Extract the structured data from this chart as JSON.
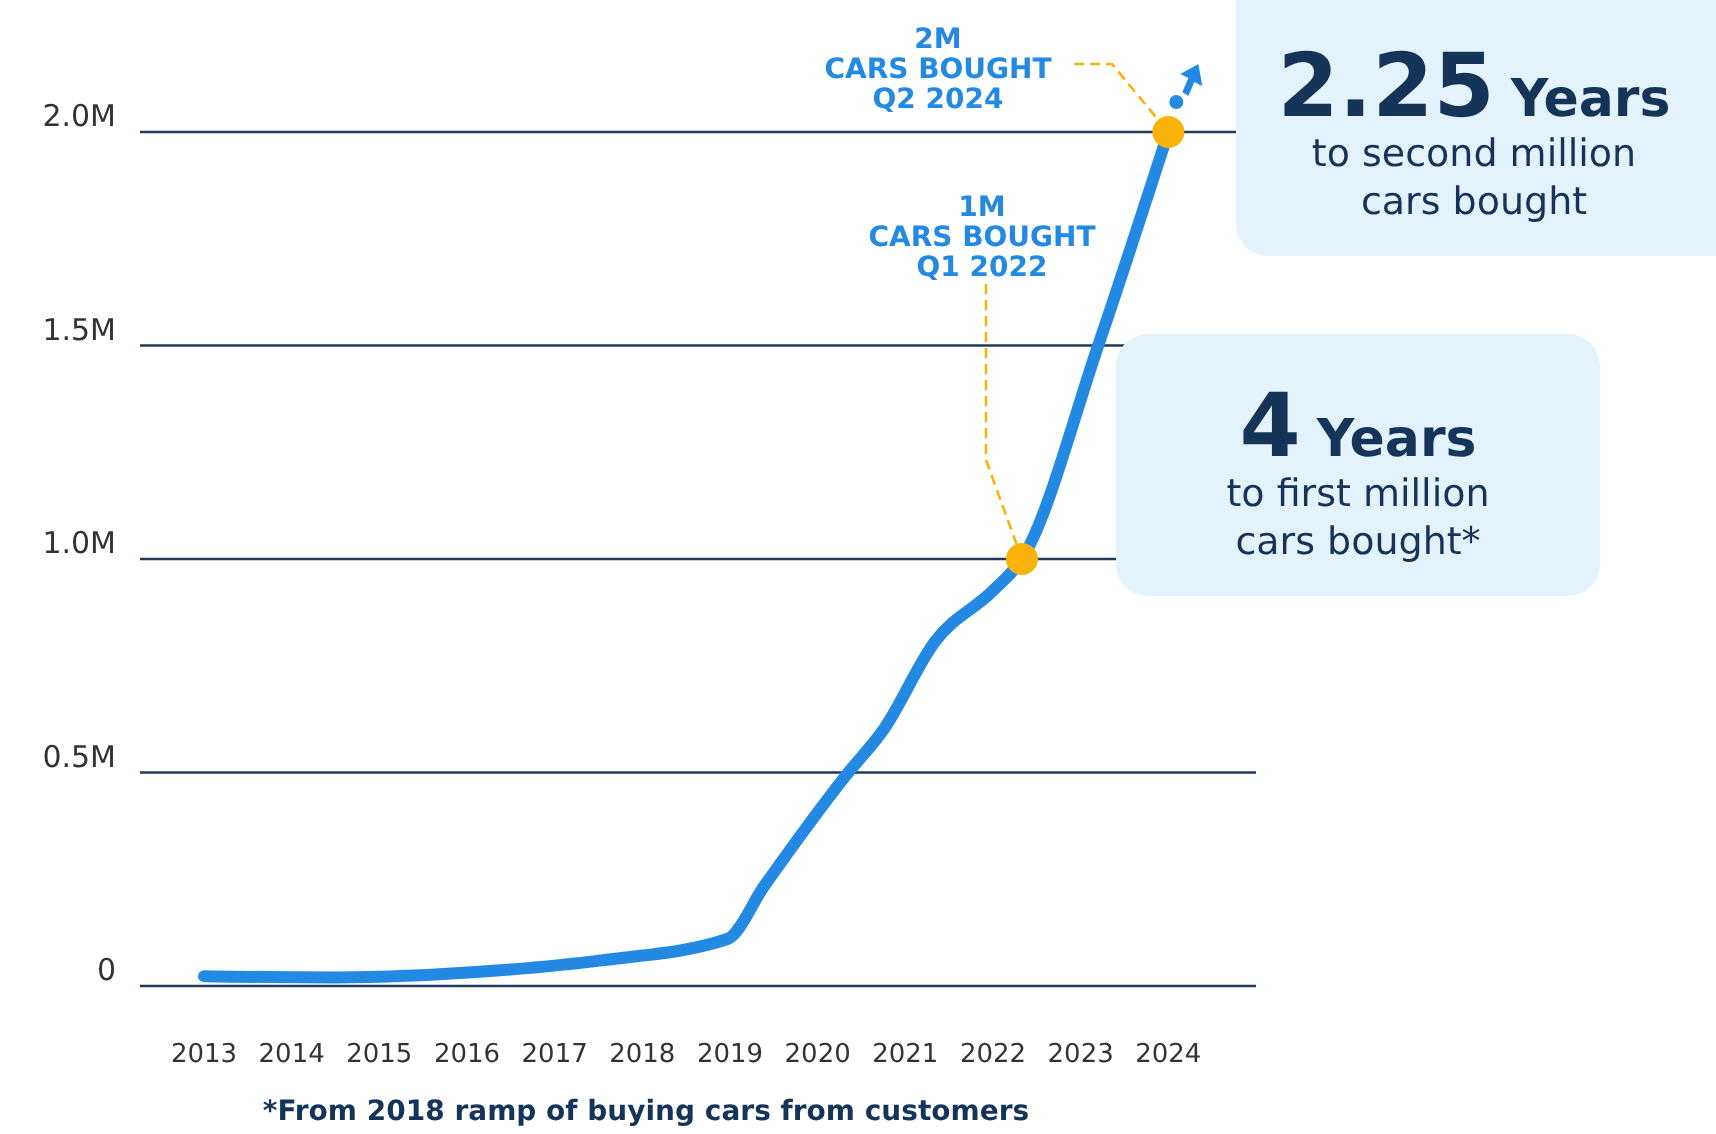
{
  "chart_data": {
    "type": "line",
    "x": [
      2013.0,
      2014.49,
      2016.26,
      2017.53,
      2018.97,
      2019.39,
      2020.33,
      2020.75,
      2021.34,
      2022.01,
      2022.33,
      2023.2,
      2024.0
    ],
    "series": [
      {
        "color": "#2389e3",
        "values": [
          0.023,
          0.02,
          0.035,
          0.06,
          0.11,
          0.234,
          0.495,
          0.6,
          0.807,
          0.928,
          1.0,
          1.5,
          2.0
        ]
      },
      {
        "type": "scatter",
        "color": "#fab30a",
        "marker": "circle",
        "x": [
          2022.33,
          2024.0
        ],
        "values": [
          1.0,
          2.0
        ]
      }
    ],
    "xlim": [
      2012.27,
      2025.0
    ],
    "xticks": [
      2013,
      2014,
      2015,
      2016,
      2017,
      2018,
      2019,
      2020,
      2021,
      2022,
      2023,
      2024
    ],
    "ylim": [
      0,
      2.0
    ],
    "yticks": [
      {
        "value": 0,
        "label": "0"
      },
      {
        "value": 0.5,
        "label": "0.5M"
      },
      {
        "value": 1.0,
        "label": "1.0M"
      },
      {
        "value": 1.5,
        "label": "1.5M"
      },
      {
        "value": 2.0,
        "label": "2.0M"
      }
    ],
    "grid": "y",
    "line_style": "solid",
    "annotations": [
      {
        "text": "2M\nCARS BOUGHT\nQ2 2024",
        "x": 2024.0,
        "y": 2.0
      },
      {
        "text": "1M\nCARS BOUGHT\nQ1 2022",
        "x": 2022.33,
        "y": 1.0
      },
      "2.25 Years\nto second million\ncars bought",
      "4 Years\nto first million\ncars bought*",
      "*From 2018 ramp of buying cars from customers"
    ]
  }
}
